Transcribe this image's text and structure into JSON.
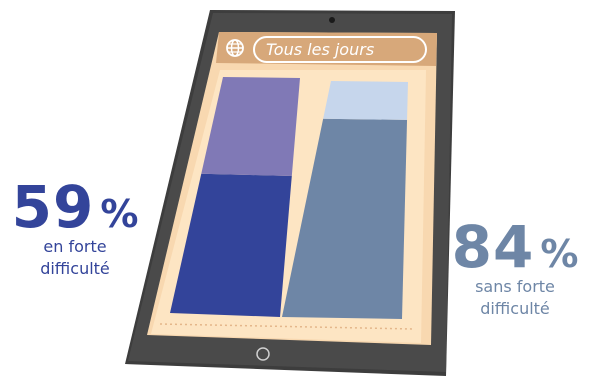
{
  "header": {
    "title": "Tous les jours",
    "globe_icon": "globe-icon"
  },
  "stats": {
    "left": {
      "number": "59",
      "unit": "%",
      "line1": "en forte",
      "line2": "difficulté"
    },
    "right": {
      "number": "84",
      "unit": "%",
      "line1": "sans forte",
      "line2": "difficulté"
    }
  },
  "chart_data": {
    "type": "bar",
    "stacked": true,
    "total": 100,
    "categories": [
      "en forte difficulté",
      "sans forte difficulté"
    ],
    "series": [
      {
        "values": [
          59,
          84
        ],
        "colors": [
          "#33449a",
          "#6e86a6"
        ]
      },
      {
        "values": [
          41,
          16
        ],
        "colors": [
          "#8079b6",
          "#c6d6ec"
        ]
      }
    ]
  },
  "colors": {
    "tablet_frame": "#3d3d3d",
    "tablet_screen_bg": "#f8d8b0",
    "header_bar": "#d7a87a",
    "accent_left": "#33449a",
    "accent_right": "#6e86a6"
  }
}
